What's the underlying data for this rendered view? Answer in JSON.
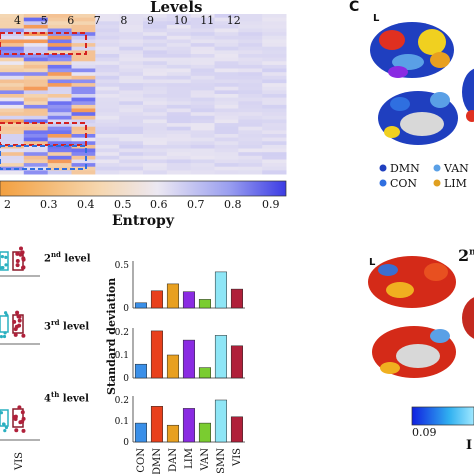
{
  "figure": {
    "heatmap": {
      "title": "Levels",
      "level_ticks": [
        "4",
        "5",
        "6",
        "7",
        "8",
        "9",
        "10",
        "11",
        "12"
      ]
    },
    "colorbar": {
      "label": "Entropy",
      "ticks": [
        "2",
        "0.3",
        "0.4",
        "0.5",
        "0.6",
        "0.7",
        "0.8",
        "0.9"
      ]
    },
    "level_labels": [
      {
        "num": "2",
        "sup": "nd",
        "word": " level"
      },
      {
        "num": "3",
        "sup": "rd",
        "word": " level"
      },
      {
        "num": "4",
        "sup": "th",
        "word": " level"
      }
    ],
    "panel_c": {
      "letter": "C",
      "hemi_label": "L",
      "legend": [
        {
          "name": "DMN",
          "color": "#1f3fbf"
        },
        {
          "name": "VAN",
          "color": "#5aa0e6"
        },
        {
          "name": "CON",
          "color": "#2f6fe0"
        },
        {
          "name": "LIM",
          "color": "#e0a020"
        }
      ]
    },
    "panel_d": {
      "hemi_label": "L",
      "title_fragment": "2",
      "title_sup": "n",
      "colorbar_min": "0.09",
      "colorbar_fragment": "I"
    },
    "box_axis": {
      "tick": "VIS"
    }
  },
  "chart_data": {
    "type": "bar",
    "ylabel": "Standard deviation",
    "categories": [
      "CON",
      "DMN",
      "DAN",
      "LIM",
      "VAN",
      "SMN",
      "VIS"
    ],
    "colors": [
      "#3a8fe8",
      "#e8401c",
      "#e8a020",
      "#8a2be2",
      "#7acc30",
      "#8ee6f6",
      "#b0203a"
    ],
    "panels": [
      {
        "name": "2nd level",
        "ylim": [
          0,
          0.5
        ],
        "yticks": [
          "0.5",
          "0"
        ],
        "values": [
          0.06,
          0.2,
          0.28,
          0.19,
          0.1,
          0.42,
          0.22
        ]
      },
      {
        "name": "3rd level",
        "ylim": [
          0,
          0.2
        ],
        "yticks": [
          "0.2",
          "0.1",
          "0"
        ],
        "values": [
          0.06,
          0.205,
          0.1,
          0.165,
          0.045,
          0.185,
          0.14
        ]
      },
      {
        "name": "4th level",
        "ylim": [
          0,
          0.2
        ],
        "yticks": [
          "0.2",
          "0.1",
          "0"
        ],
        "values": [
          0.09,
          0.17,
          0.08,
          0.16,
          0.09,
          0.2,
          0.12
        ]
      }
    ]
  }
}
